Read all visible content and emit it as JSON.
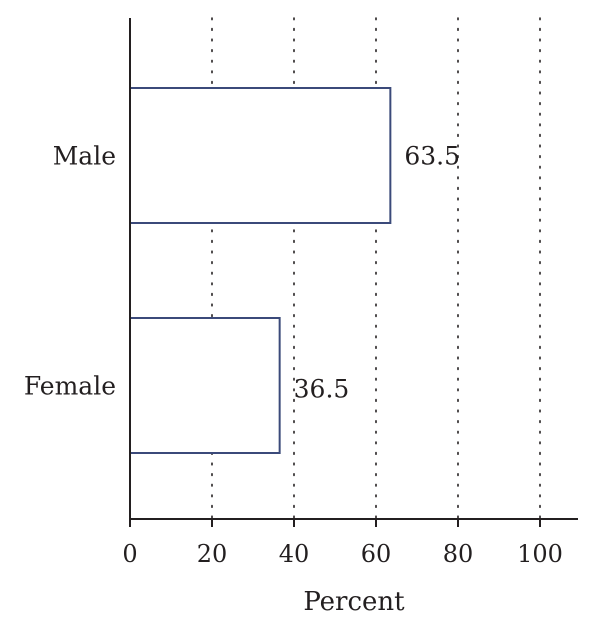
{
  "chart_data": {
    "type": "bar",
    "orientation": "horizontal",
    "title": "",
    "xlabel": "Percent",
    "ylabel": "",
    "categories": [
      "Male",
      "Female"
    ],
    "values": [
      63.5,
      36.5
    ],
    "value_labels": [
      "63.5",
      "36.5"
    ],
    "xlim": [
      0,
      100
    ],
    "xticks": [
      0,
      20,
      40,
      60,
      80,
      100
    ],
    "xtick_labels": [
      "0",
      "20",
      "40",
      "60",
      "80",
      "100"
    ],
    "grid": "vertical dotted lines",
    "legend": "none",
    "colors": {
      "bar_outline": "#3b4a7a",
      "bar_fill": "#ffffff",
      "axis": "#231f20",
      "grid": "#231f20"
    }
  }
}
